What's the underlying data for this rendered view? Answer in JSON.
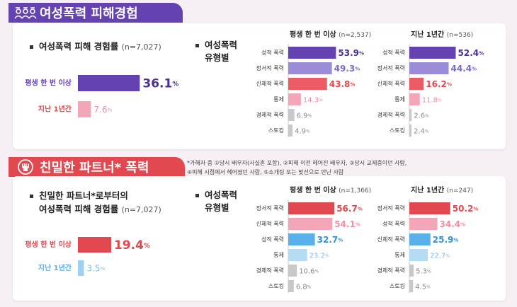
{
  "section1": {
    "title": "여성폭력 피해경험",
    "overall": {
      "heading": "여성폭력 피해 경험률",
      "n": "(n=7,027)",
      "bars": [
        {
          "label": "평생 한 번 이상",
          "value": 36.1,
          "display": "36.1",
          "color": "#6443b0"
        },
        {
          "label": "지난 1년간",
          "value": 7.6,
          "display": "7.6",
          "color": "#f2a6b8"
        }
      ]
    },
    "types_heading_line1": "여성폭력",
    "types_heading_line2": "유형별"
  },
  "section2": {
    "title": "친밀한 파트너* 폭력",
    "footnote_line1": "*가해자 중 ①당시 배우자(사실혼 포함), ②피해 이전 헤어진 배우자, ③당시 교제중이던 사람,",
    "footnote_line2": "④피해 시점에서 헤어졌던 사람, ⑤소개팅 또는 맞선으로 만난 사람",
    "overall": {
      "heading_line1": "친밀한 파트너*로부터의",
      "heading_line2": "여성폭력 피해 경험률",
      "n": "(n=7,027)",
      "bars": [
        {
          "label": "평생 한 번 이상",
          "value": 19.4,
          "display": "19.4",
          "color": "#e1484f"
        },
        {
          "label": "지난 1년간",
          "value": 3.5,
          "display": "3.5",
          "color": "#9fd0f0"
        }
      ]
    },
    "types_heading_line1": "여성폭력",
    "types_heading_line2": "유형별"
  },
  "chart_data": [
    {
      "type": "bar",
      "title": "여성폭력 피해 경험률 (n=7,027)",
      "categories": [
        "평생 한 번 이상",
        "지난 1년간"
      ],
      "values": [
        36.1,
        7.6
      ],
      "unit": "%"
    },
    {
      "type": "bar",
      "title": "평생 한 번 이상 (n=2,537)",
      "categories": [
        "성적 폭력",
        "정서적 폭력",
        "신체적 폭력",
        "통제",
        "경제적 폭력",
        "스토킹"
      ],
      "values": [
        53.9,
        49.3,
        43.8,
        14.3,
        6.9,
        4.9
      ],
      "colors": [
        "#6443b0",
        "#9a8cd6",
        "#ec5a64",
        "#f2a6b8",
        "#c8c8c8",
        "#c8c8c8"
      ],
      "unit": "%"
    },
    {
      "type": "bar",
      "title": "지난 1년간 (n=536)",
      "categories": [
        "성적 폭력",
        "정서적 폭력",
        "신체적 폭력",
        "통제",
        "경제적 폭력",
        "스토킹"
      ],
      "values": [
        52.4,
        44.4,
        16.2,
        11.8,
        2.6,
        2.4
      ],
      "colors": [
        "#6443b0",
        "#9a8cd6",
        "#ec5a64",
        "#f2a6b8",
        "#c8c8c8",
        "#c8c8c8"
      ],
      "unit": "%"
    },
    {
      "type": "bar",
      "title": "친밀한 파트너*로부터의 여성폭력 피해 경험률 (n=7,027)",
      "categories": [
        "평생 한 번 이상",
        "지난 1년간"
      ],
      "values": [
        19.4,
        3.5
      ],
      "unit": "%"
    },
    {
      "type": "bar",
      "title": "평생 한 번 이상 (n=1,366)",
      "categories": [
        "정서적 폭력",
        "신체적 폭력",
        "성적 폭력",
        "통제",
        "경제적 폭력",
        "스토킹"
      ],
      "values": [
        56.7,
        54.1,
        32.7,
        23.2,
        10.6,
        6.8
      ],
      "colors": [
        "#e1484f",
        "#f2a6b8",
        "#5ab0e8",
        "#b5dcf5",
        "#c8c8c8",
        "#c8c8c8"
      ],
      "unit": "%"
    },
    {
      "type": "bar",
      "title": "지난 1년간 (n=247)",
      "categories": [
        "정서적 폭력",
        "성적 폭력",
        "신체적 폭력",
        "통제",
        "경제적 폭력",
        "스토킹"
      ],
      "values": [
        50.2,
        34.4,
        25.9,
        22.7,
        5.3,
        4.5
      ],
      "colors": [
        "#e1484f",
        "#f2a6b8",
        "#5ab0e8",
        "#b5dcf5",
        "#c8c8c8",
        "#c8c8c8"
      ],
      "unit": "%"
    }
  ],
  "value_colors": {
    "purple": "#4a2f95",
    "lavender": "#7c6cc4",
    "red": "#e1484f",
    "pink": "#ef8fa5",
    "gray": "#8a8a8a",
    "blue": "#2f93d6",
    "lightblue": "#7cbfe8"
  }
}
